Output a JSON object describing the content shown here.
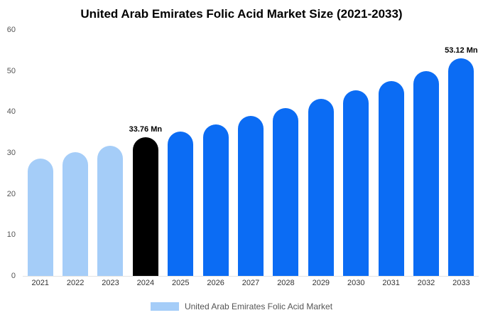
{
  "chart_data": {
    "type": "bar",
    "title": "United Arab Emirates Folic Acid Market Size (2021-2033)",
    "categories": [
      "2021",
      "2022",
      "2023",
      "2024",
      "2025",
      "2026",
      "2027",
      "2028",
      "2029",
      "2030",
      "2031",
      "2032",
      "2033"
    ],
    "values": [
      28.6,
      30.1,
      31.7,
      33.76,
      35.2,
      37.0,
      39.0,
      41.0,
      43.1,
      45.3,
      47.6,
      50.0,
      53.12
    ],
    "bar_colors": [
      "#a5cdf8",
      "#a5cdf8",
      "#a5cdf8",
      "#000000",
      "#0b6cf4",
      "#0b6cf4",
      "#0b6cf4",
      "#0b6cf4",
      "#0b6cf4",
      "#0b6cf4",
      "#0b6cf4",
      "#0b6cf4",
      "#0b6cf4"
    ],
    "annotations": [
      {
        "index": 3,
        "text": "33.76 Mn"
      },
      {
        "index": 12,
        "text": "53.12 Mn"
      }
    ],
    "xlabel": "",
    "ylabel": "",
    "ylim": [
      0,
      60
    ],
    "yticks": [
      0,
      10,
      20,
      30,
      40,
      50,
      60
    ],
    "grid": false,
    "legend": {
      "position": "bottom",
      "label": "United Arab Emirates Folic Acid Market",
      "swatch_color": "#a5cdf8"
    }
  }
}
